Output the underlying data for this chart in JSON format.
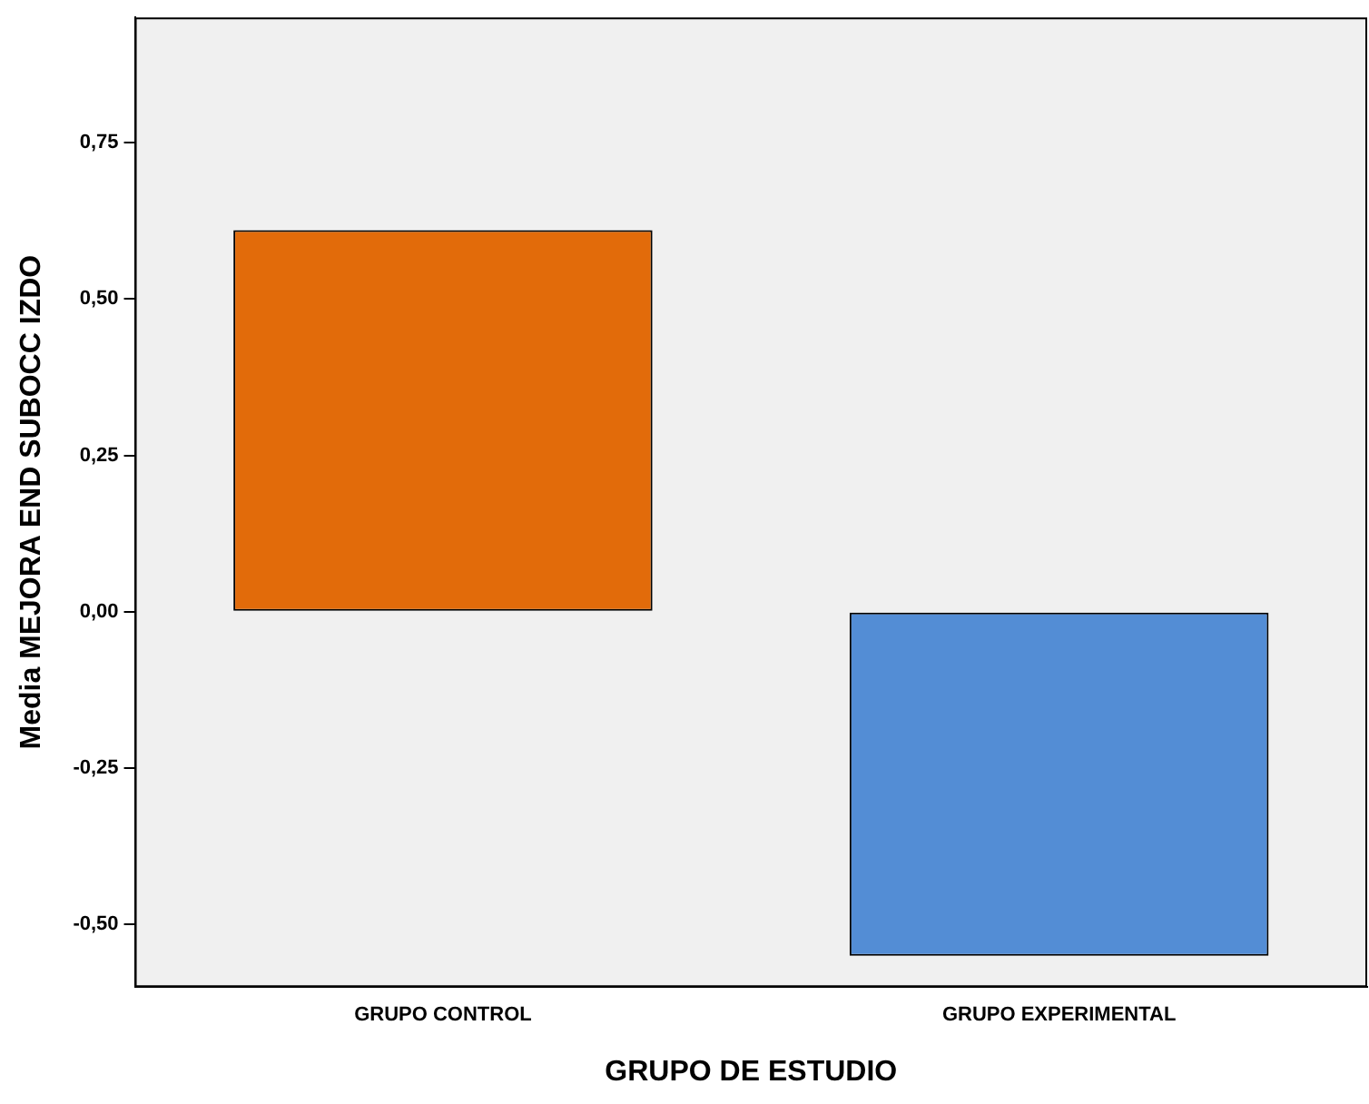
{
  "chart_data": {
    "type": "bar",
    "xlabel": "GRUPO DE ESTUDIO",
    "ylabel": "Media MEJORA END SUBOCC IZDO",
    "categories": [
      "GRUPO CONTROL",
      "GRUPO EXPERIMENTAL"
    ],
    "values": [
      0.61,
      -0.55
    ],
    "colors": [
      "#e26b0a",
      "#538dd5"
    ],
    "ylim": [
      -0.6,
      0.95
    ],
    "yticks": [
      {
        "value": -0.5,
        "label": "-0,50"
      },
      {
        "value": -0.25,
        "label": "-0,25"
      },
      {
        "value": 0,
        "label": "0,00"
      },
      {
        "value": 0.25,
        "label": "0,25"
      },
      {
        "value": 0.5,
        "label": "0,50"
      },
      {
        "value": 0.75,
        "label": "0,75"
      }
    ],
    "grid": false,
    "legend": false
  }
}
